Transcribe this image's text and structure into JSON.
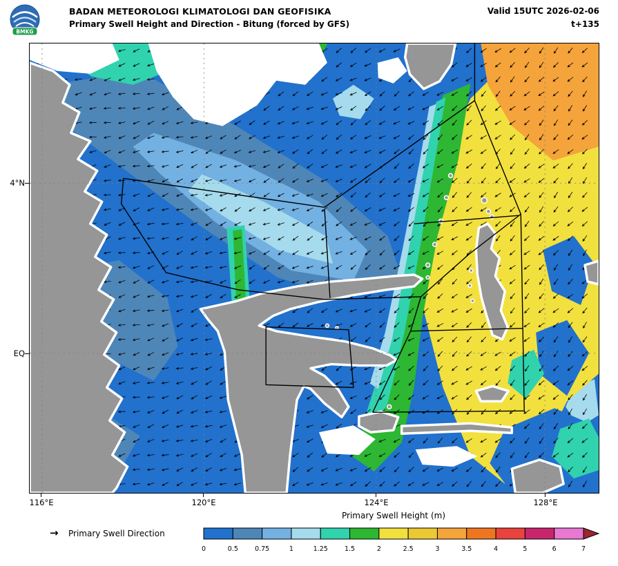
{
  "header": {
    "logo_text": "BMKG",
    "agency": "BADAN METEOROLOGI KLIMATOLOGI DAN GEOFISIKA",
    "product": "Primary Swell Height and Direction - Bitung (forced by GFS)",
    "valid": "Valid 15UTC 2026-02-06",
    "timestep": "t+135"
  },
  "map": {
    "lat_labels": [
      "4°N",
      "EQ"
    ],
    "lon_labels": [
      "116°E",
      "120°E",
      "124°E",
      "128°E"
    ]
  },
  "legend": {
    "colorbar_title": "Primary Swell Height (m)",
    "direction_symbol": "→",
    "direction_label": "Primary Swell Direction",
    "ticks": [
      "0",
      "0.5",
      "0.75",
      "1",
      "1.25",
      "1.5",
      "2",
      "2.5",
      "3",
      "3.5",
      "4",
      "5",
      "6",
      "7"
    ],
    "colors": [
      "#2171cd",
      "#4e86b8",
      "#73b1e3",
      "#a5dbec",
      "#31d2ae",
      "#2db733",
      "#f2e03e",
      "#ecc832",
      "#f5a33b",
      "#ee7621",
      "#e8433c",
      "#c9256c",
      "#e878d0"
    ],
    "arrow_color": "#9b2531"
  },
  "palette": {
    "land": "#969696",
    "nodata": "#ffffff",
    "boundary": "#000000",
    "sea_background": "#2171cd"
  }
}
